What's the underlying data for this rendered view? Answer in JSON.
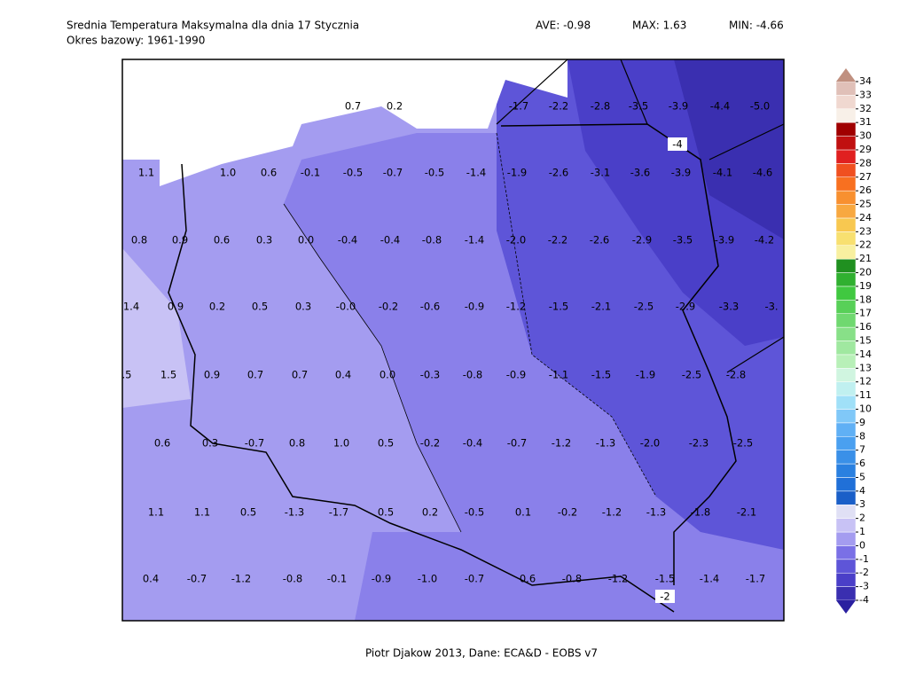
{
  "header": {
    "title": "Srednia Temperatura Maksymalna dla dnia 17 Stycznia",
    "subtitle": "Okres bazowy: 1961-1990",
    "ave": "AVE: -0.98",
    "max": "MAX: 1.63",
    "min": "MIN: -4.66"
  },
  "map": {
    "rows": [
      [
        "0.7",
        "0.2",
        "-1.7",
        "-2.2",
        "-2.8",
        "-3.5",
        "-3.9",
        "-4.4",
        "-5.0"
      ],
      [
        "1.1",
        "1.0",
        "0.6",
        "-0.1",
        "-0.5",
        "-0.7",
        "-0.5",
        "-1.4",
        "-1.9",
        "-2.6",
        "-3.1",
        "-3.6",
        "-3.9",
        "-4.1",
        "-4.6"
      ],
      [
        "0.8",
        "0.9",
        "0.6",
        "0.3",
        "0.0",
        "-0.4",
        "-0.4",
        "-0.8",
        "-1.4",
        "-2.0",
        "-2.2",
        "-2.6",
        "-2.9",
        "-3.5",
        "-3.9",
        "-4.2"
      ],
      [
        "1.4",
        "0.9",
        "0.2",
        "0.5",
        "0.3",
        "-0.0",
        "-0.2",
        "-0.6",
        "-0.9",
        "-1.2",
        "-1.5",
        "-2.1",
        "-2.5",
        "-2.9",
        "-3.3",
        "-3."
      ],
      [
        ".5",
        "1.5",
        "0.9",
        "0.7",
        "0.7",
        "0.4",
        "0.0",
        "-0.3",
        "-0.8",
        "-0.9",
        "-1.1",
        "-1.5",
        "-1.9",
        "-2.5",
        "-2.8"
      ],
      [
        "0.6",
        "0.3",
        "-0.7",
        "0.8",
        "1.0",
        "0.5",
        "-0.2",
        "-0.4",
        "-0.7",
        "-1.2",
        "-1.3",
        "-2.0",
        "-2.3",
        "-2.5"
      ],
      [
        "1.1",
        "1.1",
        "0.5",
        "-1.3",
        "-1.7",
        "0.5",
        "0.2",
        "-0.5",
        "0.1",
        "-0.2",
        "-1.2",
        "-1.3",
        "-1.8",
        "-2.1"
      ],
      [
        "0.4",
        "-0.7",
        "-1.2",
        "-0.8",
        "-0.1",
        "-0.9",
        "-1.0",
        "-0.7",
        "0.6",
        "-0.8",
        "-1.2",
        "-1.5",
        "-1.4",
        "-1.7"
      ]
    ],
    "contour_labels": [
      "-4",
      "-2"
    ]
  },
  "colorbar": {
    "labels": [
      -4,
      -3,
      -2,
      -1,
      0,
      1,
      2,
      3,
      4,
      5,
      6,
      7,
      8,
      9,
      10,
      11,
      12,
      13,
      14,
      15,
      16,
      17,
      18,
      19,
      20,
      21,
      22,
      23,
      24,
      25,
      26,
      27,
      28,
      29,
      30,
      31,
      32,
      33,
      34
    ],
    "colors": [
      "#3a2fb0",
      "#4a3fc8",
      "#5e55d8",
      "#7a70e6",
      "#a49cf0",
      "#c8c2f5",
      "#e0e0f5",
      "#1a5fc8",
      "#2070d8",
      "#2a80e0",
      "#3a90e8",
      "#4aa0f0",
      "#60b0f5",
      "#80c8f8",
      "#a0e0f8",
      "#c0f0f0",
      "#d0f5e0",
      "#b8f0b8",
      "#a0e8a0",
      "#88e088",
      "#70d870",
      "#58d058",
      "#40c840",
      "#30b030",
      "#209020",
      "#f8f0a0",
      "#f8e070",
      "#f8c850",
      "#f8a840",
      "#f89030",
      "#f87020",
      "#f05020",
      "#e02020",
      "#c01010",
      "#a00000",
      "#f8f0e8",
      "#f0d8d0",
      "#e0c0b8"
    ],
    "under_color": "#2a20a0",
    "over_color": "#c09080"
  },
  "footer": "Piotr Djakow 2013, Dane: ECA&D - EOBS v7"
}
